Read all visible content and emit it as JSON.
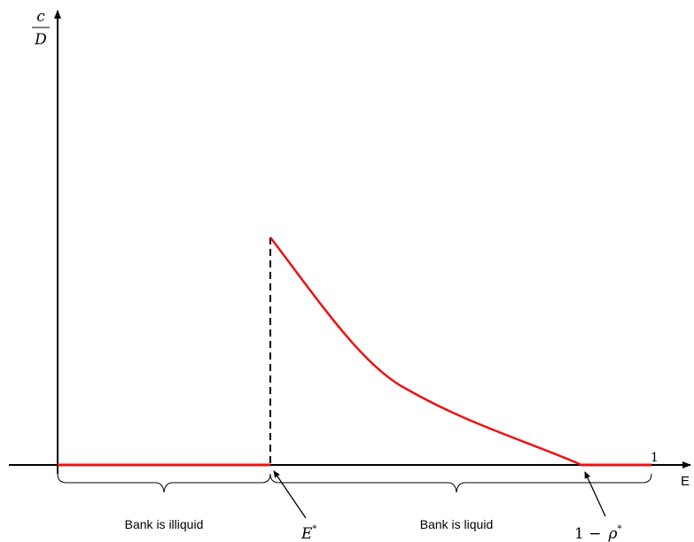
{
  "axes": {
    "y_label_num": "c",
    "y_label_den": "D",
    "x_label": "E",
    "x_end_tick": "1"
  },
  "markers": {
    "e_star": "E",
    "e_star_sup": "*",
    "one_minus_rho": "1 −",
    "rho": "ρ",
    "rho_sup": "*"
  },
  "regions": {
    "illiquid": "Bank is illiquid",
    "liquid": "Bank is liquid"
  },
  "colors": {
    "curve": "#ee1111",
    "axis": "#000000"
  }
}
